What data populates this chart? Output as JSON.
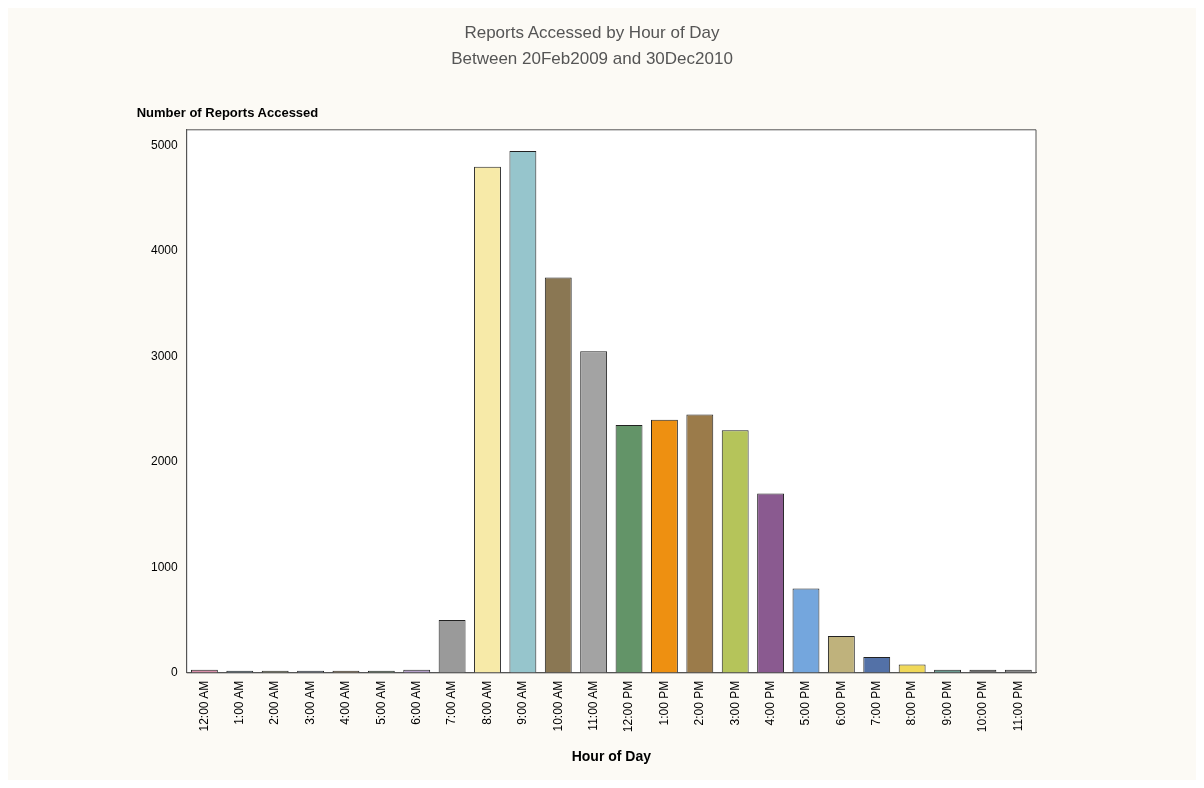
{
  "chart_data": {
    "type": "bar",
    "title": "Reports Accessed by Hour of Day",
    "subtitle": "Between 20Feb2009 and 30Dec2010",
    "xlabel": "Hour of Day",
    "ylabel": "Number of Reports Accessed",
    "categories": [
      "12:00 AM",
      "1:00 AM",
      "2:00 AM",
      "3:00 AM",
      "4:00 AM",
      "5:00 AM",
      "6:00 AM",
      "7:00 AM",
      "8:00 AM",
      "9:00 AM",
      "10:00 AM",
      "11:00 AM",
      "12:00 PM",
      "1:00 PM",
      "2:00 PM",
      "3:00 PM",
      "4:00 PM",
      "5:00 PM",
      "6:00 PM",
      "7:00 PM",
      "8:00 PM",
      "9:00 PM",
      "10:00 PM",
      "11:00 PM"
    ],
    "values": [
      30,
      20,
      20,
      20,
      20,
      20,
      30,
      500,
      4800,
      4950,
      3750,
      3050,
      2350,
      2400,
      2450,
      2300,
      1700,
      800,
      350,
      150,
      80,
      30,
      30,
      30
    ],
    "colors": [
      "#d98fa8",
      "#6f8fa0",
      "#a4a882",
      "#8c9bb4",
      "#c0a070",
      "#7fa07f",
      "#b49fc8",
      "#9a9a9a",
      "#f7eaa8",
      "#96c5cc",
      "#8a7753",
      "#a3a3a3",
      "#639468",
      "#ee9011",
      "#9b7b4a",
      "#b5c45a",
      "#8a5a90",
      "#74a6dd",
      "#bfb27c",
      "#5371a7",
      "#f0d858",
      "#6a9a90",
      "#707070",
      "#8a8a8a"
    ],
    "ylim": [
      0,
      5150
    ],
    "yticks": [
      0,
      1000,
      2000,
      3000,
      4000,
      5000
    ],
    "grid": false,
    "legend": false
  }
}
